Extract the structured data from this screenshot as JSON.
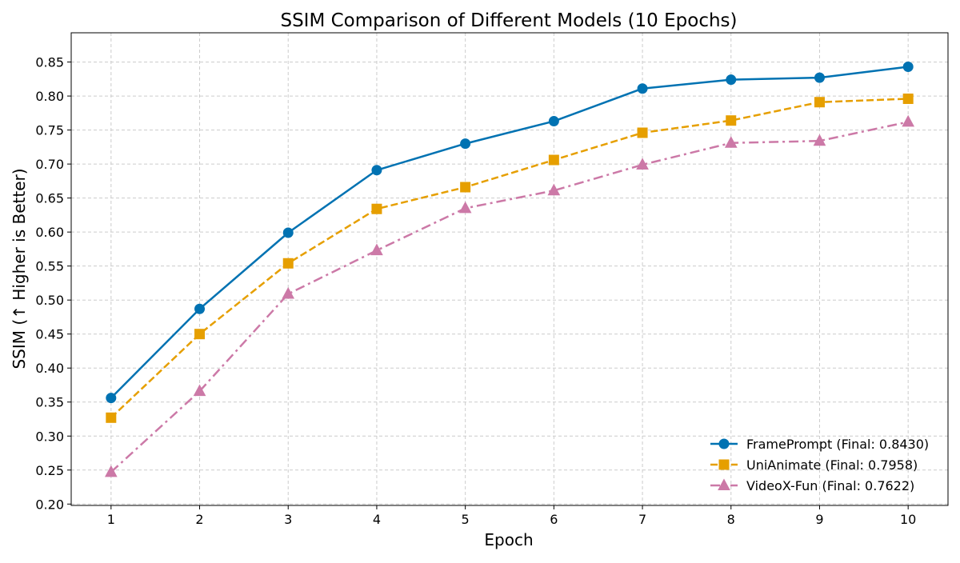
{
  "chart_data": {
    "type": "line",
    "title": "SSIM Comparison of Different Models (10 Epochs)",
    "xlabel": "Epoch",
    "ylabel": "SSIM (↑ Higher is Better)",
    "x": [
      1,
      2,
      3,
      4,
      5,
      6,
      7,
      8,
      9,
      10
    ],
    "xlim": [
      0.55,
      10.45
    ],
    "ylim": [
      0.198,
      0.893
    ],
    "yticks": [
      0.2,
      0.25,
      0.3,
      0.35,
      0.4,
      0.45,
      0.5,
      0.55,
      0.6,
      0.65,
      0.7,
      0.75,
      0.8,
      0.85
    ],
    "grid": true,
    "legend_position": "lower-right",
    "series": [
      {
        "name": "FramePrompt",
        "legend_label": "FramePrompt (Final: 0.8430)",
        "values": [
          0.356,
          0.487,
          0.599,
          0.691,
          0.73,
          0.763,
          0.811,
          0.824,
          0.827,
          0.843
        ],
        "color": "#0072B2",
        "marker": "circle",
        "line_style": "solid"
      },
      {
        "name": "UniAnimate",
        "legend_label": "UniAnimate (Final: 0.7958)",
        "values": [
          0.327,
          0.45,
          0.554,
          0.634,
          0.666,
          0.706,
          0.746,
          0.764,
          0.791,
          0.796
        ],
        "color": "#E69F00",
        "marker": "square",
        "line_style": "dashed"
      },
      {
        "name": "VideoX-Fun",
        "legend_label": "VideoX-Fun (Final: 0.7622)",
        "values": [
          0.247,
          0.366,
          0.509,
          0.573,
          0.635,
          0.661,
          0.699,
          0.731,
          0.734,
          0.762
        ],
        "color": "#CC79A7",
        "marker": "triangle",
        "line_style": "dashdot"
      }
    ]
  }
}
